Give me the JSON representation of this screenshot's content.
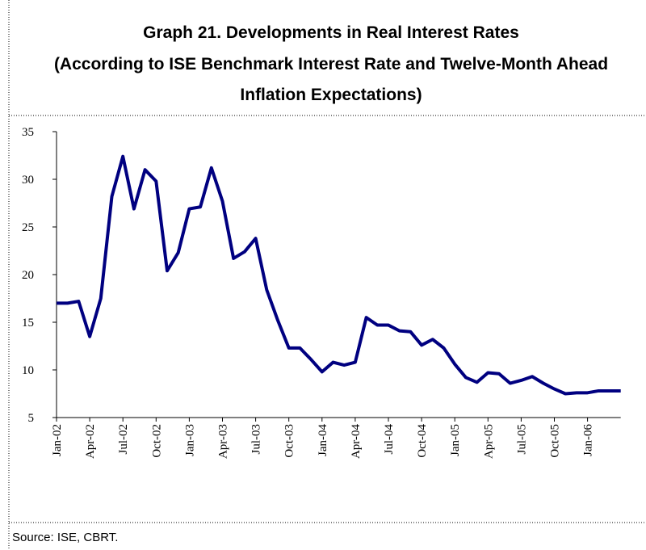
{
  "chart_data": {
    "type": "line",
    "title": [
      "Graph 21. Developments in Real Interest Rates",
      "(According to ISE Benchmark Interest Rate and Twelve-Month Ahead",
      "Inflation Expectations)"
    ],
    "categories": [
      "Jan-02",
      null,
      null,
      "Apr-02",
      null,
      null,
      "Jul-02",
      null,
      null,
      "Oct-02",
      null,
      null,
      "Jan-03",
      null,
      null,
      "Apr-03",
      null,
      null,
      "Jul-03",
      null,
      null,
      "Oct-03",
      null,
      null,
      "Jan-04",
      null,
      null,
      "Apr-04",
      null,
      null,
      "Jul-04",
      null,
      null,
      "Oct-04",
      null,
      null,
      "Jan-05",
      null,
      null,
      "Apr-05",
      null,
      null,
      "Jul-05",
      null,
      null,
      "Oct-05",
      null,
      null,
      "Jan-06",
      null,
      null,
      null
    ],
    "series": [
      {
        "color": "#000080",
        "values": [
          17,
          17,
          17.2,
          13.5,
          17.5,
          28.2,
          32.4,
          26.9,
          31,
          29.8,
          20.4,
          22.3,
          26.9,
          27.1,
          31.2,
          27.7,
          21.7,
          22.4,
          23.8,
          18.4,
          15.2,
          12.3,
          12.3,
          11.1,
          9.8,
          10.8,
          10.5,
          10.8,
          15.5,
          14.7,
          14.7,
          14.1,
          14.0,
          12.6,
          13.2,
          12.3,
          10.6,
          9.2,
          8.7,
          9.7,
          9.6,
          8.6,
          8.9,
          9.3,
          8.6,
          8.0,
          7.5,
          7.6,
          7.6,
          7.8,
          7.8,
          7.8
        ]
      }
    ],
    "ylim": [
      5,
      35
    ],
    "yticks": [
      5,
      10,
      15,
      20,
      25,
      30,
      35
    ],
    "grid": false,
    "source": "Source: ISE, CBRT."
  }
}
